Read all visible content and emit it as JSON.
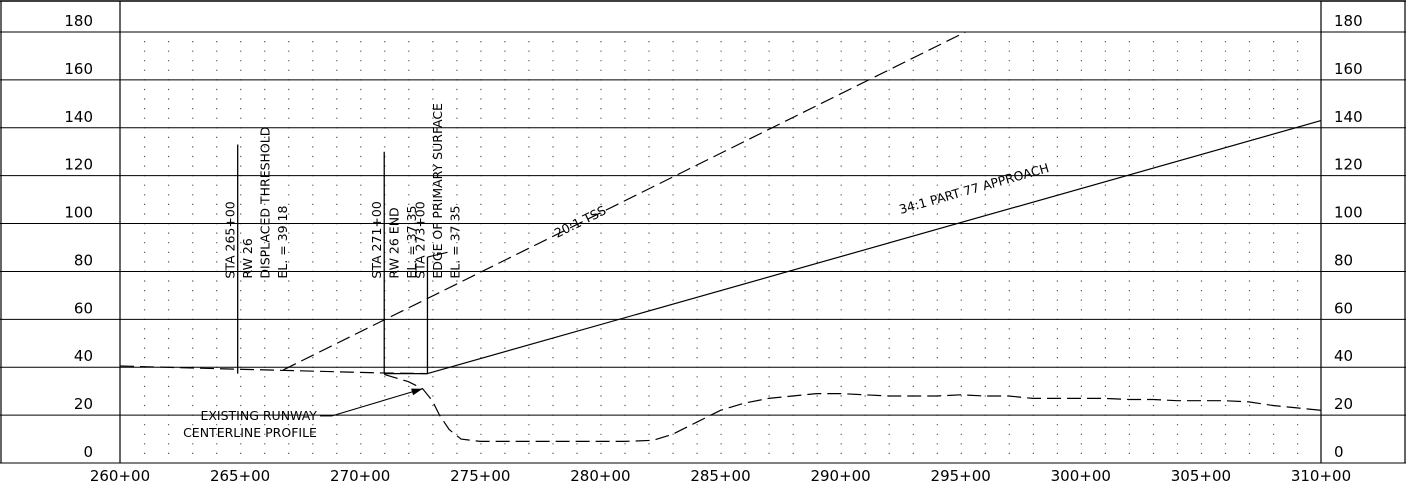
{
  "chart_data": {
    "type": "line",
    "title": "",
    "xlabel": "",
    "ylabel": "",
    "xlim": [
      260,
      310
    ],
    "ylim": [
      0,
      180
    ],
    "x_tick_labels": [
      {
        "x": 260,
        "label": "260+00"
      },
      {
        "x": 265,
        "label": "265+00"
      },
      {
        "x": 270,
        "label": "270+00"
      },
      {
        "x": 275,
        "label": "275+00"
      },
      {
        "x": 280,
        "label": "280+00"
      },
      {
        "x": 285,
        "label": "285+00"
      },
      {
        "x": 290,
        "label": "290+00"
      },
      {
        "x": 295,
        "label": "295+00"
      },
      {
        "x": 300,
        "label": "300+00"
      },
      {
        "x": 305,
        "label": "305+00"
      },
      {
        "x": 310,
        "label": "310+00"
      }
    ],
    "y_tick_labels": [
      {
        "y": 0,
        "label": "0"
      },
      {
        "y": 20,
        "label": "20"
      },
      {
        "y": 40,
        "label": "40"
      },
      {
        "y": 60,
        "label": "60"
      },
      {
        "y": 80,
        "label": "80"
      },
      {
        "y": 100,
        "label": "100"
      },
      {
        "y": 120,
        "label": "120"
      },
      {
        "y": 140,
        "label": "140"
      },
      {
        "y": 160,
        "label": "160"
      },
      {
        "y": 180,
        "label": "180"
      }
    ],
    "grid": true,
    "series": [
      {
        "name": "34:1 PART 77 APPROACH",
        "style": "solid",
        "x": [
          272.8,
          310
        ],
        "y": [
          37.35,
          143
        ]
      },
      {
        "name": "20:1 TSS",
        "style": "dashed",
        "x": [
          266.8,
          295.2
        ],
        "y": [
          38.9,
          180
        ]
      },
      {
        "name": "",
        "style": "dashed",
        "x": [
          260,
          264.9,
          271,
          272.8
        ],
        "y": [
          40.5,
          39.18,
          37.6,
          37.35
        ]
      },
      {
        "name": "",
        "style": "solid",
        "x": [
          271,
          272.8
        ],
        "y": [
          37.35,
          37.35
        ]
      },
      {
        "name": "EXISTING RUNWAY CENTERLINE PROFILE",
        "style": "dashed",
        "x": [
          271,
          272,
          272.6,
          273,
          273.3,
          273.7,
          274.2,
          275,
          278,
          281,
          282.2,
          283,
          284,
          285,
          286,
          287,
          288,
          289,
          290,
          291,
          292,
          293,
          294,
          295,
          296,
          297,
          298,
          299,
          300,
          301,
          302,
          303,
          304,
          305,
          306,
          307,
          308,
          309,
          310
        ],
        "y": [
          37,
          34,
          31,
          26,
          20,
          14,
          10,
          9,
          9,
          9,
          9.5,
          12,
          17,
          22,
          25,
          27,
          28,
          29,
          29,
          28.5,
          28,
          28,
          28,
          28.5,
          28,
          28,
          27,
          27,
          27,
          27,
          26.5,
          26.5,
          26,
          26,
          26,
          25.5,
          24,
          23,
          22
        ]
      }
    ],
    "stations": [
      {
        "x": 264.9,
        "top_y": 133,
        "lines": [
          "STA 265+00",
          "RW 26",
          "DISPLACED THRESHOLD",
          "EL. = 39.18"
        ]
      },
      {
        "x": 271.0,
        "top_y": 130,
        "lines": [
          "STA 271+00",
          "RW 26 END",
          "EL. = 37.35"
        ]
      },
      {
        "x": 272.8,
        "top_y": 86,
        "lines": [
          "STA 273+00",
          "EDGE OF PRIMARY SURFACE",
          "EL. = 37.35"
        ]
      }
    ],
    "line_labels": [
      {
        "text": "20:1 TSS",
        "x": 278.2,
        "y": 94
      },
      {
        "text": "34:1 PART 77 APPROACH",
        "x": 292.5,
        "y": 104
      }
    ],
    "annotation": {
      "lines": [
        "EXISTING RUNWAY",
        "CENTERLINE PROFILE"
      ],
      "x": 268.2,
      "y": 18,
      "arrow_to": {
        "x": 272.6,
        "y": 31
      }
    }
  }
}
